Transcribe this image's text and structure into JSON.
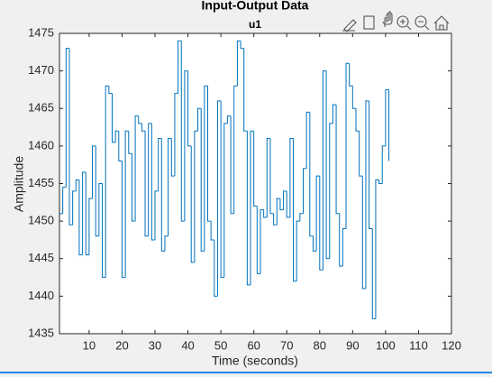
{
  "chart_data": {
    "type": "stairs",
    "title": "Input-Output Data",
    "subtitle": "u1",
    "xlabel": "Time (seconds)",
    "ylabel": "Amplitude",
    "xlim": [
      1,
      120
    ],
    "xticks": [
      10,
      20,
      30,
      40,
      50,
      60,
      70,
      80,
      90,
      100,
      110,
      120
    ],
    "ylim": [
      1435,
      1475
    ],
    "yticks": [
      1435,
      1440,
      1445,
      1450,
      1455,
      1460,
      1465,
      1470,
      1475
    ],
    "x": [
      1,
      2,
      3,
      4,
      5,
      6,
      7,
      8,
      9,
      10,
      11,
      12,
      13,
      14,
      15,
      16,
      17,
      18,
      19,
      20,
      21,
      22,
      23,
      24,
      25,
      26,
      27,
      28,
      29,
      30,
      31,
      32,
      33,
      34,
      35,
      36,
      37,
      38,
      39,
      40,
      41,
      42,
      43,
      44,
      45,
      46,
      47,
      48,
      49,
      50,
      51,
      52,
      53,
      54,
      55,
      56,
      57,
      58,
      59,
      60,
      61,
      62,
      63,
      64,
      65,
      66,
      67,
      68,
      69,
      70,
      71,
      72,
      73,
      74,
      75,
      76,
      77,
      78,
      79,
      80,
      81,
      82,
      83,
      84,
      85,
      86,
      87,
      88,
      89,
      90,
      91,
      92,
      93,
      94,
      95,
      96,
      97,
      98,
      99,
      100,
      101
    ],
    "series": [
      {
        "name": "u1",
        "color": "#0072bd",
        "values": [
          1451,
          1454.5,
          1473,
          1449.5,
          1454,
          1455.5,
          1445.5,
          1456.5,
          1445.5,
          1453,
          1460,
          1448,
          1455,
          1442.5,
          1468,
          1467,
          1460.5,
          1462,
          1458,
          1442.5,
          1462,
          1459,
          1450,
          1464,
          1463,
          1462,
          1448,
          1463,
          1447.5,
          1454,
          1461,
          1446,
          1448,
          1461,
          1456,
          1467,
          1474,
          1450,
          1470,
          1460,
          1444.5,
          1462,
          1465,
          1446,
          1468,
          1450,
          1447.5,
          1440,
          1466,
          1442.5,
          1463,
          1464,
          1451,
          1468,
          1474,
          1473,
          1462,
          1441.5,
          1462,
          1452,
          1443,
          1451.5,
          1450.5,
          1461,
          1451,
          1449.5,
          1453,
          1451.5,
          1454,
          1450.5,
          1461,
          1442,
          1450,
          1451,
          1457,
          1464.5,
          1448,
          1446,
          1456,
          1443.5,
          1470,
          1445,
          1463,
          1465.5,
          1451,
          1444,
          1449,
          1471,
          1468,
          1465,
          1462,
          1456,
          1441,
          1466,
          1449,
          1437,
          1455.5,
          1455,
          1460,
          1467.5,
          1458
        ]
      }
    ]
  }
}
